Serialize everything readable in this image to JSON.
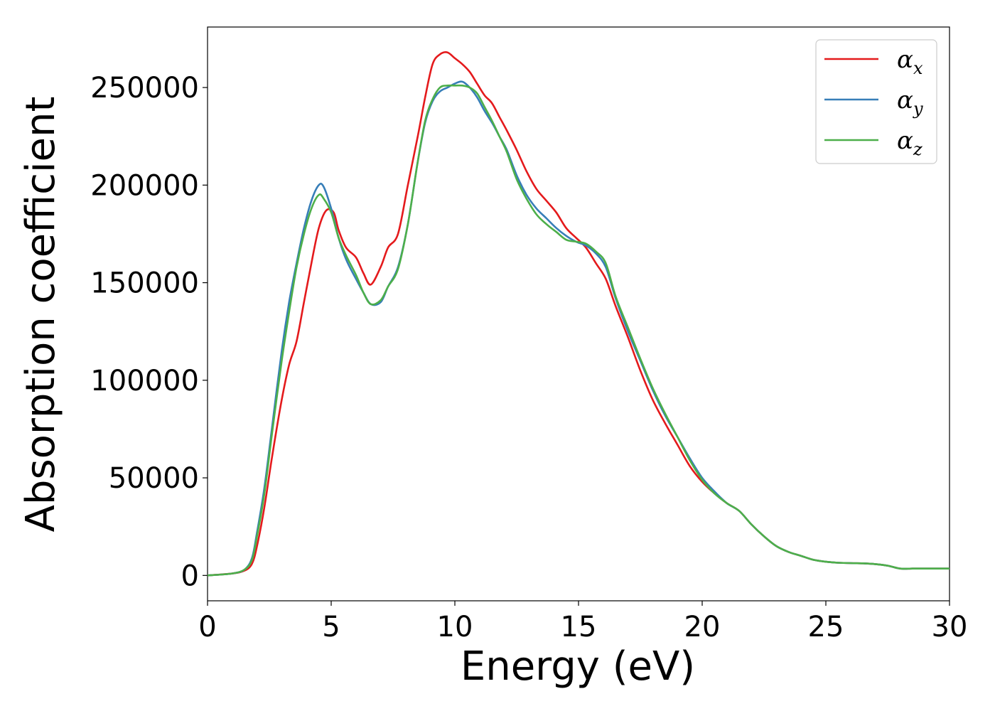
{
  "chart_data": {
    "type": "line",
    "title": "",
    "xlabel": "Energy (eV)",
    "ylabel": "Absorption coefficient",
    "xlim": [
      0,
      30
    ],
    "ylim": [
      -13000,
      281000
    ],
    "xticks": [
      0,
      5,
      10,
      15,
      20,
      25,
      30
    ],
    "yticks": [
      0,
      50000,
      100000,
      150000,
      200000,
      250000
    ],
    "legend_position": "top-right",
    "series": [
      {
        "name": "α_x",
        "symbol": "α",
        "subscript": "x",
        "color": "#e41a1c",
        "x": [
          0,
          1,
          1.5,
          1.8,
          2,
          2.3,
          2.6,
          3,
          3.3,
          3.6,
          3.9,
          4.2,
          4.5,
          4.8,
          5.1,
          5.3,
          5.6,
          6,
          6.3,
          6.6,
          7,
          7.3,
          7.7,
          8.1,
          8.5,
          8.8,
          9.1,
          9.4,
          9.7,
          10,
          10.3,
          10.6,
          10.9,
          11.2,
          11.5,
          11.8,
          12.1,
          12.5,
          12.9,
          13.3,
          13.7,
          14.1,
          14.5,
          14.9,
          15.3,
          15.7,
          16.1,
          16.5,
          17,
          17.5,
          18,
          18.5,
          19,
          19.5,
          20,
          20.5,
          21,
          21.5,
          22,
          22.5,
          23,
          23.5,
          24,
          24.5,
          25,
          25.5,
          26,
          26.5,
          27,
          27.5,
          28,
          28.5,
          29,
          29.5,
          30
        ],
        "y": [
          0,
          1000,
          2500,
          6000,
          15000,
          35000,
          60000,
          90000,
          108000,
          120000,
          140000,
          160000,
          178000,
          187000,
          186000,
          177000,
          168000,
          163000,
          155000,
          149000,
          158000,
          168000,
          175000,
          200000,
          225000,
          245000,
          262000,
          267000,
          268000,
          265000,
          262000,
          258000,
          252000,
          246000,
          242000,
          235000,
          228000,
          218000,
          207000,
          198000,
          192000,
          186000,
          178000,
          173000,
          168000,
          160000,
          152000,
          138000,
          122000,
          105000,
          90000,
          78000,
          67000,
          56000,
          48000,
          42000,
          37000,
          33000,
          26000,
          20000,
          15000,
          12000,
          10000,
          8000,
          7000,
          6500,
          6300,
          6200,
          5800,
          5000,
          3500,
          3500,
          3500,
          3500,
          3500
        ],
        "y_note": "values read from curve"
      },
      {
        "name": "α_y",
        "symbol": "α",
        "subscript": "y",
        "color": "#377eb8",
        "x": [
          0,
          1,
          1.5,
          1.8,
          2,
          2.3,
          2.6,
          3,
          3.3,
          3.6,
          3.9,
          4.2,
          4.5,
          4.7,
          5,
          5.3,
          5.6,
          6,
          6.3,
          6.6,
          7,
          7.3,
          7.7,
          8.1,
          8.5,
          8.8,
          9.1,
          9.4,
          9.7,
          10,
          10.3,
          10.6,
          10.9,
          11.2,
          11.5,
          11.8,
          12.1,
          12.5,
          12.9,
          13.3,
          13.7,
          14.1,
          14.5,
          14.9,
          15.3,
          15.7,
          16.1,
          16.5,
          17,
          17.5,
          18,
          18.5,
          19,
          19.5,
          20,
          20.5,
          21,
          21.5,
          22,
          22.5,
          23,
          23.5,
          24,
          24.5,
          25,
          25.5,
          26,
          26.5,
          27,
          27.5,
          28,
          28.5,
          29,
          29.5,
          30
        ],
        "y": [
          0,
          1000,
          3000,
          9000,
          22000,
          45000,
          75000,
          115000,
          140000,
          160000,
          178000,
          192000,
          200000,
          199000,
          188000,
          173000,
          162000,
          152000,
          145000,
          139000,
          140000,
          148000,
          158000,
          180000,
          212000,
          232000,
          243000,
          248000,
          250000,
          252000,
          253000,
          250000,
          245000,
          238000,
          232000,
          225000,
          218000,
          205000,
          195000,
          188000,
          183000,
          178000,
          174000,
          171000,
          169000,
          165000,
          158000,
          142000,
          125000,
          110000,
          95000,
          82000,
          71000,
          60000,
          50000,
          43000,
          37000,
          33000,
          26000,
          20000,
          15000,
          12000,
          10000,
          8000,
          7000,
          6500,
          6300,
          6200,
          5800,
          5000,
          3500,
          3500,
          3500,
          3500,
          3500
        ]
      },
      {
        "name": "α_z",
        "symbol": "α",
        "subscript": "z",
        "color": "#4daf4a",
        "x": [
          0,
          1,
          1.5,
          1.8,
          2,
          2.3,
          2.6,
          3,
          3.3,
          3.6,
          3.9,
          4.2,
          4.5,
          4.7,
          5,
          5.3,
          5.6,
          6,
          6.3,
          6.6,
          7,
          7.3,
          7.7,
          8.1,
          8.5,
          8.8,
          9.1,
          9.4,
          9.7,
          10,
          10.3,
          10.6,
          10.9,
          11.2,
          11.5,
          11.8,
          12.1,
          12.5,
          12.9,
          13.3,
          13.7,
          14.1,
          14.5,
          14.9,
          15.3,
          15.7,
          16.1,
          16.5,
          17,
          17.5,
          18,
          18.5,
          19,
          19.5,
          20,
          20.5,
          21,
          21.5,
          22,
          22.5,
          23,
          23.5,
          24,
          24.5,
          25,
          25.5,
          26,
          26.5,
          27,
          27.5,
          28,
          28.5,
          29,
          29.5,
          30
        ],
        "y": [
          0,
          1000,
          3000,
          8000,
          20000,
          42000,
          72000,
          110000,
          135000,
          158000,
          175000,
          188000,
          195000,
          193000,
          186000,
          173000,
          164000,
          154000,
          145000,
          139000,
          141000,
          148000,
          157000,
          180000,
          212000,
          233000,
          244000,
          250000,
          251000,
          251000,
          251000,
          250000,
          247000,
          240000,
          233000,
          225000,
          217000,
          203000,
          193000,
          185000,
          180000,
          176000,
          172000,
          171000,
          170000,
          166000,
          160000,
          143000,
          127000,
          111000,
          96000,
          83000,
          71000,
          59000,
          49000,
          42000,
          37000,
          33000,
          26000,
          20000,
          15000,
          12000,
          10000,
          8000,
          7000,
          6500,
          6300,
          6200,
          5800,
          5000,
          3500,
          3500,
          3500,
          3500,
          3500
        ]
      }
    ]
  }
}
